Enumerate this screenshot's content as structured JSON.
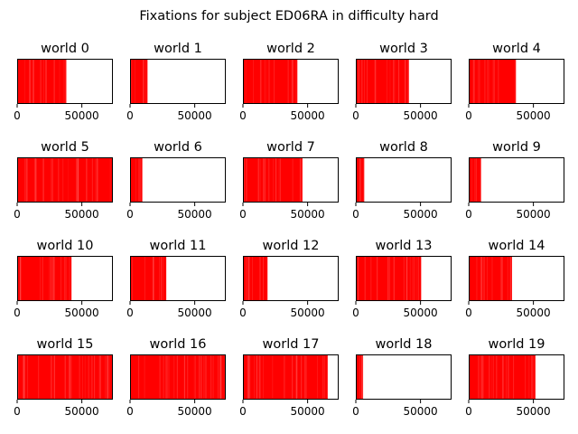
{
  "figure": {
    "suptitle": "Fixations for subject ED06RA in difficulty hard"
  },
  "chart_data": {
    "type": "bar",
    "xlim": [
      0,
      74000
    ],
    "xticks": [
      0,
      50000
    ],
    "xtick_labels": [
      "0",
      "50000"
    ],
    "yaxis_visible": false,
    "grid": false,
    "fill_color": "#ff0000",
    "panels": [
      {
        "title": "world 0",
        "extent": 38000
      },
      {
        "title": "world 1",
        "extent": 13500
      },
      {
        "title": "world 2",
        "extent": 42000
      },
      {
        "title": "world 3",
        "extent": 41000
      },
      {
        "title": "world 4",
        "extent": 36500
      },
      {
        "title": "world 5",
        "extent": 74000
      },
      {
        "title": "world 6",
        "extent": 9500
      },
      {
        "title": "world 7",
        "extent": 46000
      },
      {
        "title": "world 8",
        "extent": 6500
      },
      {
        "title": "world 9",
        "extent": 9500
      },
      {
        "title": "world 10",
        "extent": 42000
      },
      {
        "title": "world 11",
        "extent": 28000
      },
      {
        "title": "world 12",
        "extent": 19000
      },
      {
        "title": "world 13",
        "extent": 50500
      },
      {
        "title": "world 14",
        "extent": 33500
      },
      {
        "title": "world 15",
        "extent": 74000
      },
      {
        "title": "world 16",
        "extent": 74000
      },
      {
        "title": "world 17",
        "extent": 65500
      },
      {
        "title": "world 18",
        "extent": 5500
      },
      {
        "title": "world 19",
        "extent": 51500
      }
    ]
  }
}
